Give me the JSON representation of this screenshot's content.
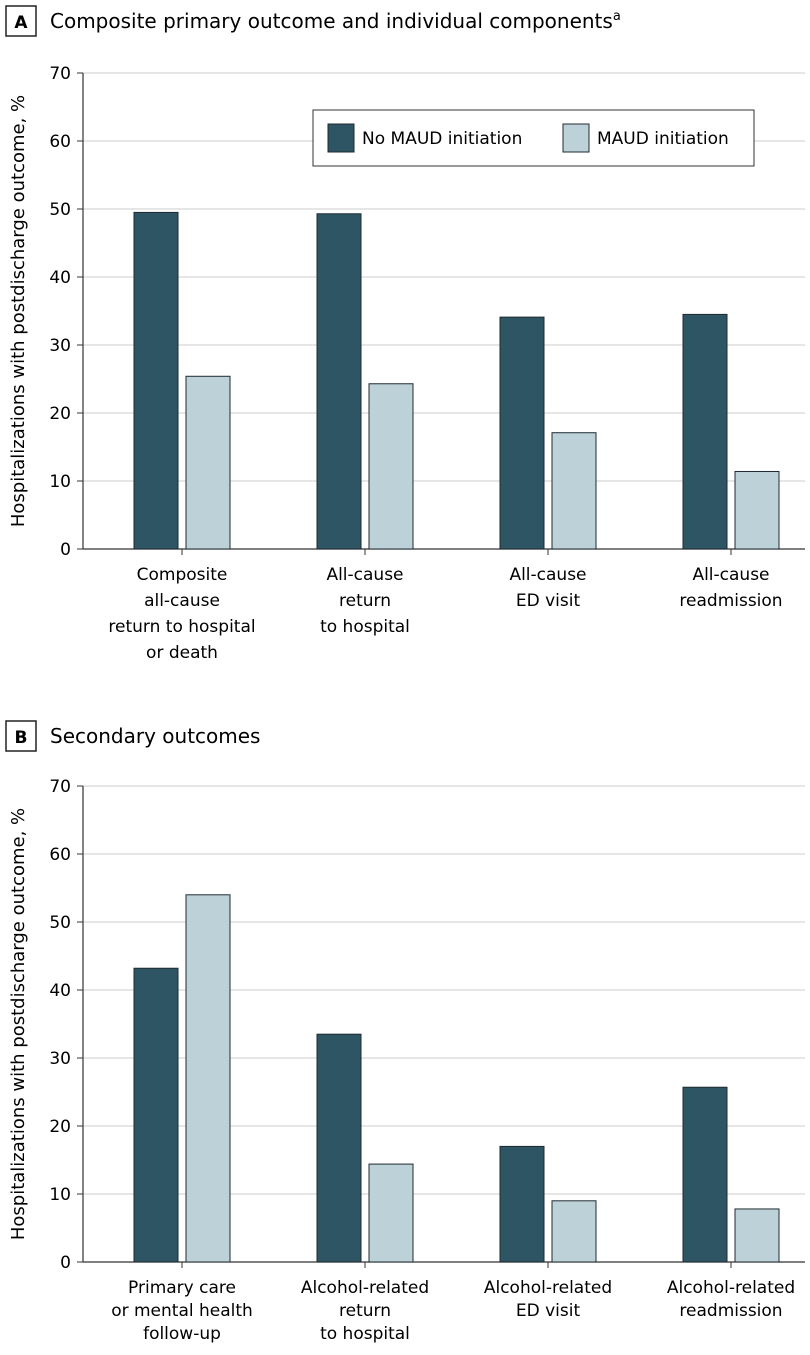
{
  "colors": {
    "no_maud": "#2e5563",
    "maud": "#bdd1d9",
    "bar_stroke": "#1e2a30",
    "grid": "#cccccc",
    "axis": "#333333"
  },
  "legend": {
    "no_maud_label": "No MAUD initiation",
    "maud_label": "MAUD initiation"
  },
  "chart_data": [
    {
      "type": "bar",
      "panel_letter": "A",
      "title": "Composite primary outcome and individual components",
      "title_superscript": "a",
      "ylabel": "Hospitalizations with postdischarge outcome, %",
      "ylim": [
        0,
        70
      ],
      "yticks": [
        0,
        10,
        20,
        30,
        40,
        50,
        60,
        70
      ],
      "grid": true,
      "legend_position": "top-right",
      "categories": [
        [
          "Composite",
          "all-cause",
          "return to hospital",
          "or death"
        ],
        [
          "All-cause",
          "return",
          "to hospital"
        ],
        [
          "All-cause",
          "ED visit"
        ],
        [
          "All-cause",
          "readmission"
        ]
      ],
      "series": [
        {
          "name": "No MAUD initiation",
          "values": [
            49.5,
            49.3,
            34.1,
            34.5
          ]
        },
        {
          "name": "MAUD initiation",
          "values": [
            25.4,
            24.3,
            17.1,
            11.4
          ]
        }
      ]
    },
    {
      "type": "bar",
      "panel_letter": "B",
      "title": "Secondary outcomes",
      "ylabel": "Hospitalizations with postdischarge outcome, %",
      "ylim": [
        0,
        70
      ],
      "yticks": [
        0,
        10,
        20,
        30,
        40,
        50,
        60,
        70
      ],
      "grid": true,
      "categories": [
        [
          "Primary care",
          "or mental health",
          "follow-up"
        ],
        [
          "Alcohol-related",
          "return",
          "to hospital"
        ],
        [
          "Alcohol-related",
          "ED visit"
        ],
        [
          "Alcohol-related",
          "readmission"
        ]
      ],
      "series": [
        {
          "name": "No MAUD initiation",
          "values": [
            43.2,
            33.5,
            17.0,
            25.7
          ]
        },
        {
          "name": "MAUD initiation",
          "values": [
            54.0,
            14.4,
            9.0,
            7.8
          ]
        }
      ]
    }
  ]
}
